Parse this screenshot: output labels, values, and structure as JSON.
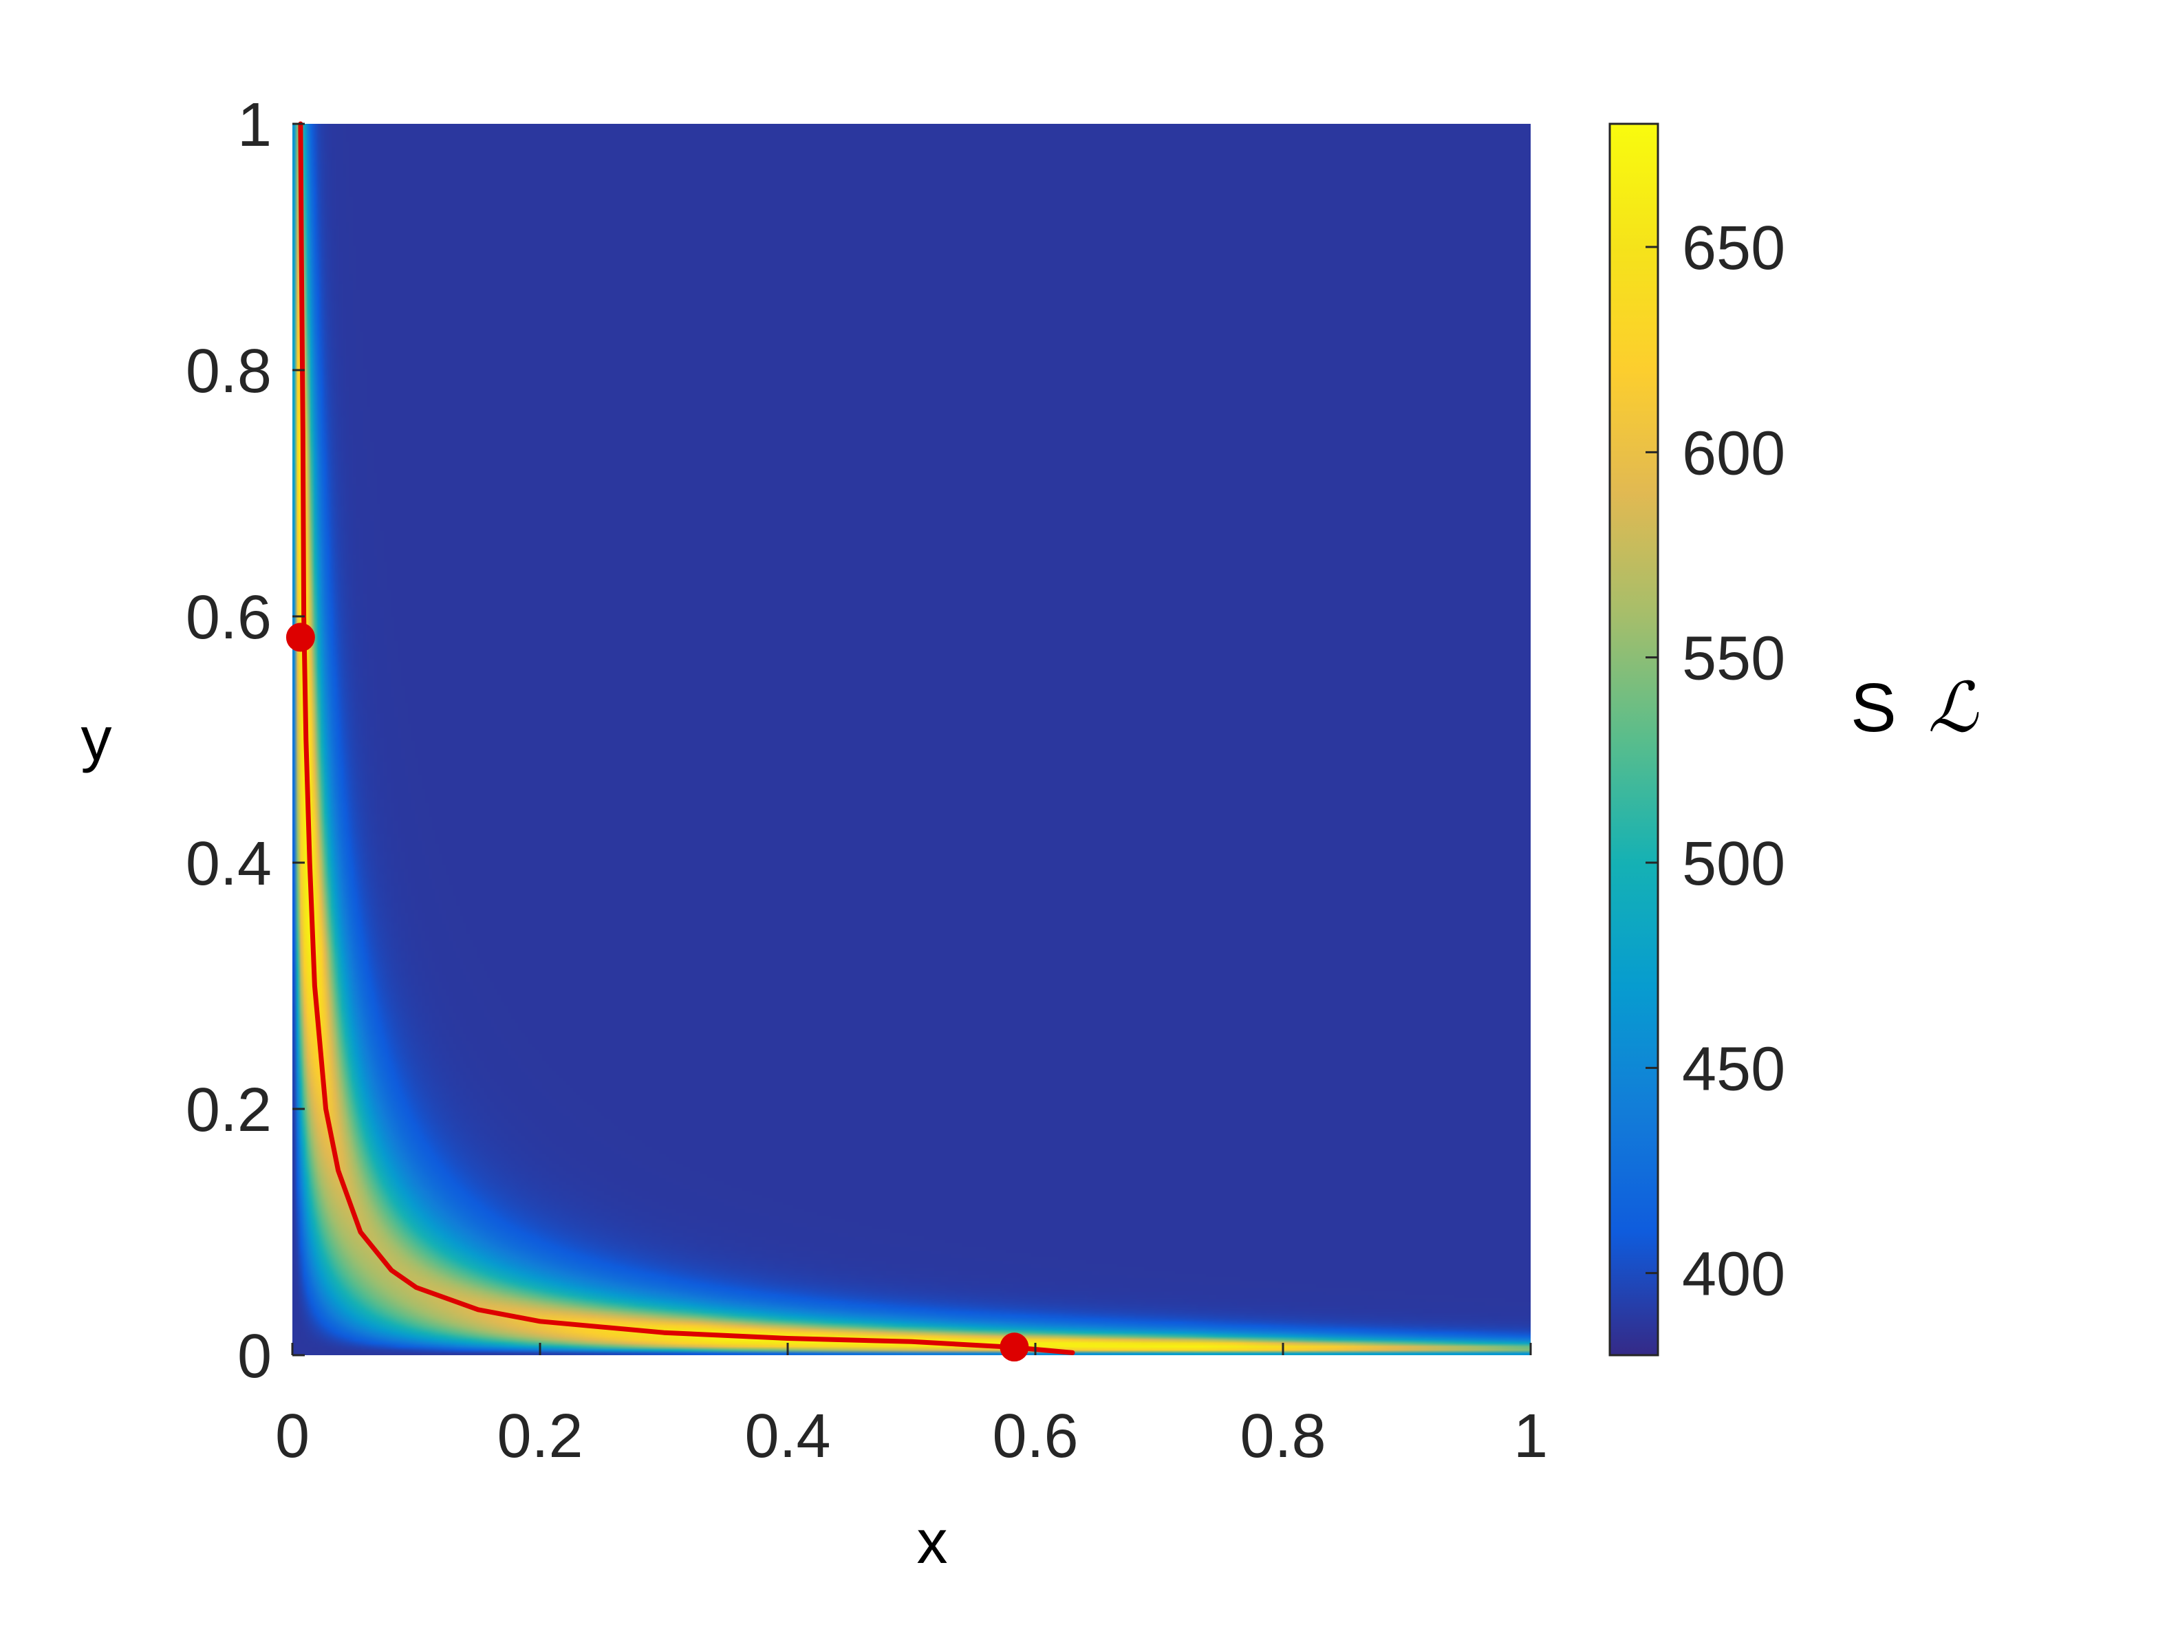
{
  "chart_data": {
    "type": "heatmap",
    "xlabel": "x",
    "ylabel": "y",
    "xlim": [
      0,
      1
    ],
    "ylim": [
      0,
      1
    ],
    "x_ticks": [
      {
        "value": 0,
        "label": "0"
      },
      {
        "value": 0.2,
        "label": "0.2"
      },
      {
        "value": 0.4,
        "label": "0.4"
      },
      {
        "value": 0.6,
        "label": "0.6"
      },
      {
        "value": 0.8,
        "label": "0.8"
      },
      {
        "value": 1,
        "label": "1"
      }
    ],
    "y_ticks": [
      {
        "value": 0,
        "label": "0"
      },
      {
        "value": 0.2,
        "label": "0.2"
      },
      {
        "value": 0.4,
        "label": "0.4"
      },
      {
        "value": 0.6,
        "label": "0.6"
      },
      {
        "value": 0.8,
        "label": "0.8"
      },
      {
        "value": 1,
        "label": "1"
      }
    ],
    "colorbar": {
      "title": "S",
      "title_symbol": "ℒ",
      "range": [
        380,
        680
      ],
      "ticks": [
        {
          "value": 400,
          "label": "400"
        },
        {
          "value": 450,
          "label": "450"
        },
        {
          "value": 500,
          "label": "500"
        },
        {
          "value": 550,
          "label": "550"
        },
        {
          "value": 600,
          "label": "600"
        },
        {
          "value": 650,
          "label": "650"
        }
      ],
      "colormap": "parula",
      "position": "right"
    },
    "field": {
      "description_of_shape": "high band along curve x*y = 0.0055, decaying away from it",
      "curve_constant": 0.0055,
      "baseline_value": 388,
      "peak_value": 670
    },
    "curve": {
      "color": "#dd0000",
      "points": [
        [
          0.0066,
          1.0
        ],
        [
          0.0073,
          0.9
        ],
        [
          0.0085,
          0.75
        ],
        [
          0.0092,
          0.6
        ],
        [
          0.011,
          0.5
        ],
        [
          0.014,
          0.4
        ],
        [
          0.018,
          0.3
        ],
        [
          0.027,
          0.2
        ],
        [
          0.037,
          0.15
        ],
        [
          0.055,
          0.1
        ],
        [
          0.08,
          0.069
        ],
        [
          0.1,
          0.055
        ],
        [
          0.15,
          0.037
        ],
        [
          0.2,
          0.0275
        ],
        [
          0.3,
          0.0183
        ],
        [
          0.4,
          0.0137
        ],
        [
          0.5,
          0.011
        ],
        [
          0.58,
          0.0066
        ],
        [
          0.63,
          0.002
        ]
      ]
    },
    "markers": [
      {
        "x": 0.0066,
        "y": 0.583,
        "color": "#dd0000"
      },
      {
        "x": 0.583,
        "y": 0.0066,
        "color": "#dd0000"
      }
    ],
    "grid": false
  }
}
